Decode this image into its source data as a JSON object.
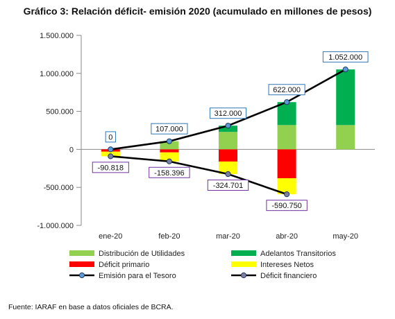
{
  "title": "Gráfico 3: Relación déficit- emisión 2020 (acumulado en millones de pesos)",
  "source": "Fuente: IARAF en base a datos oficiales de BCRA.",
  "chart_data": {
    "type": "bar",
    "categories": [
      "ene-20",
      "feb-20",
      "mar-20",
      "abr-20",
      "may-20"
    ],
    "y_ticks": [
      "1.500.000",
      "1.000.000",
      "500.000",
      "0",
      "-500.000",
      "-1.000.000"
    ],
    "ylim": [
      -1000000,
      1500000
    ],
    "stacked_positive": [
      {
        "name": "Distribución de Utilidades",
        "color": "#92d050",
        "values": [
          0,
          107000,
          230000,
          320000,
          320000
        ]
      },
      {
        "name": "Adelantos Transitorios",
        "color": "#00b050",
        "values": [
          0,
          0,
          82000,
          302000,
          732000
        ]
      }
    ],
    "stacked_negative": [
      {
        "name": "Déficit primario",
        "color": "#ff0000",
        "values": [
          -30000,
          -40000,
          -160000,
          -380000,
          0
        ]
      },
      {
        "name": "Intereses Netos",
        "color": "#ffff00",
        "values": [
          -60818,
          -118396,
          -164701,
          -210750,
          0
        ]
      }
    ],
    "lines": [
      {
        "name": "Emisión para el Tesoro",
        "color": "#000000",
        "marker_color": "#5b9bd5",
        "label_border": "#2e75b6",
        "values": [
          0,
          107000,
          312000,
          622000,
          1052000
        ],
        "labels": [
          "0",
          "107.000",
          "312.000",
          "622.000",
          "1.052.000"
        ]
      },
      {
        "name": "Déficit financiero",
        "color": "#000000",
        "marker_color": "#7f7f9f",
        "label_border": "#7030a0",
        "values": [
          -90818,
          -158396,
          -324701,
          -590750,
          null
        ],
        "labels": [
          "-90.818",
          "-158.396",
          "-324.701",
          "-590.750",
          ""
        ]
      }
    ],
    "legend": [
      "Distribución de Utilidades",
      "Adelantos Transitorios",
      "Déficit primario",
      "Intereses Netos",
      "Emisión para el Tesoro",
      "Déficit financiero"
    ],
    "legend_position": "bottom",
    "grid": false
  }
}
